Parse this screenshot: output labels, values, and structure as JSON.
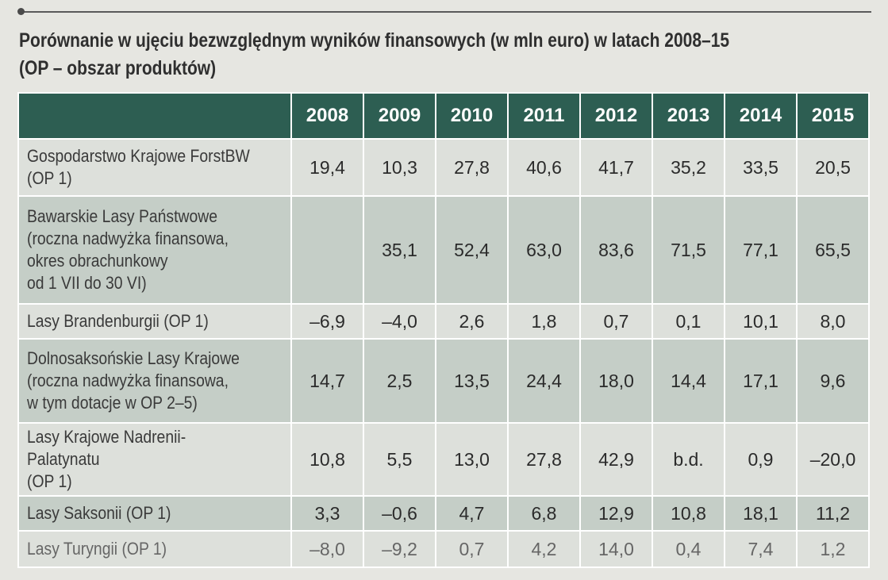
{
  "title_line1": "Porównanie w ujęciu bezwzględnym wyników finansowych (w mln euro) w latach 2008–15",
  "title_line2": "(OP – obszar produktów)",
  "years": [
    "2008",
    "2009",
    "2010",
    "2011",
    "2012",
    "2013",
    "2014",
    "2015"
  ],
  "rows": [
    {
      "label": [
        "Gospodarstwo Krajowe ForstBW",
        "(OP 1)"
      ],
      "values": [
        "19,4",
        "10,3",
        "27,8",
        "40,6",
        "41,7",
        "35,2",
        "33,5",
        "20,5"
      ]
    },
    {
      "label": [
        "Bawarskie Lasy Państwowe",
        "(roczna nadwyżka finansowa,",
        "okres obrachunkowy",
        "od 1 VII do 30 VI)"
      ],
      "values": [
        "",
        "35,1",
        "52,4",
        "63,0",
        "83,6",
        "71,5",
        "77,1",
        "65,5"
      ]
    },
    {
      "label": [
        "Lasy Brandenburgii (OP 1)"
      ],
      "values": [
        "–6,9",
        "–4,0",
        "2,6",
        "1,8",
        "0,7",
        "0,1",
        "10,1",
        "8,0"
      ]
    },
    {
      "label": [
        "Dolnosaksońskie Lasy Krajowe",
        "(roczna nadwyżka finansowa,",
        "w tym dotacje w OP 2–5)"
      ],
      "values": [
        "14,7",
        "2,5",
        "13,5",
        "24,4",
        "18,0",
        "14,4",
        "17,1",
        "9,6"
      ]
    },
    {
      "label": [
        "Lasy Krajowe Nadrenii-Palatynatu",
        "(OP 1)"
      ],
      "values": [
        "10,8",
        "5,5",
        "13,0",
        "27,8",
        "42,9",
        "b.d.",
        "0,9",
        "–20,0"
      ]
    },
    {
      "label": [
        "Lasy Saksonii (OP 1)"
      ],
      "values": [
        "3,3",
        "–0,6",
        "4,7",
        "6,8",
        "12,9",
        "10,8",
        "18,1",
        "11,2"
      ]
    },
    {
      "label": [
        "Lasy Turyngii (OP 1)"
      ],
      "values": [
        "–8,0",
        "–9,2",
        "0,7",
        "4,2",
        "14,0",
        "0,4",
        "7,4",
        "1,2"
      ]
    }
  ]
}
